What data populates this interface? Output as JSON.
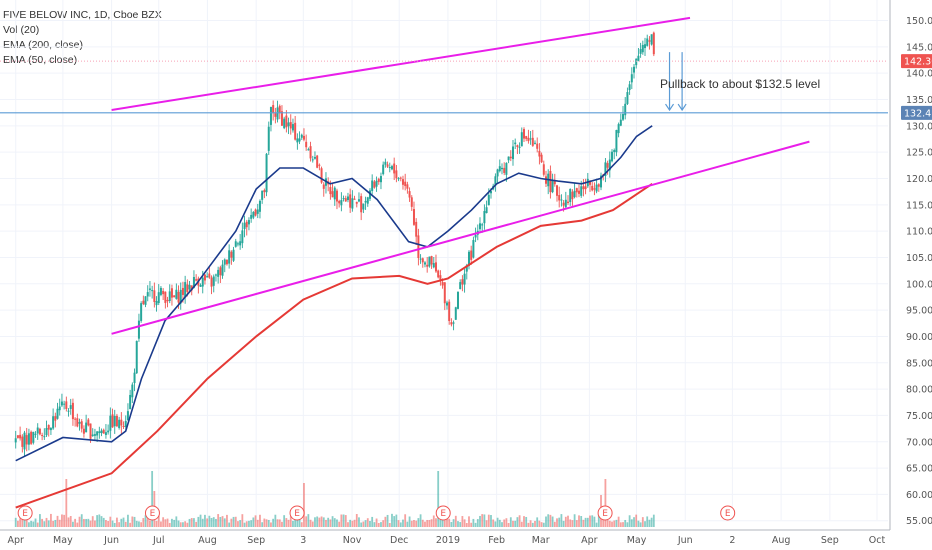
{
  "legend": {
    "symbol": "FIVE BELOW INC, 1D, Cboe BZX",
    "volume": "Vol (20)",
    "ema200": "EMA (200, close)",
    "ema50": "EMA (50, close)"
  },
  "annotation": "Pullback to about $132.5 level",
  "colors": {
    "up": "#26a69a",
    "down": "#ef5350",
    "ema50": "#1a3a8c",
    "ema200": "#e53935",
    "channel": "#e91ee9",
    "hline": "#5b9bd5",
    "price_tag": "#ef5350",
    "level_tag": "#5b83b5"
  },
  "chart_data": {
    "type": "candlestick",
    "title": "FIVE BELOW INC, 1D, Cboe BZX",
    "y_ticks": [
      55,
      60,
      65,
      70,
      75,
      80,
      85,
      90,
      95,
      100,
      105,
      110,
      115,
      120,
      125,
      130,
      135,
      140,
      145,
      150
    ],
    "y_tick_labels": [
      "55.00",
      "60.00",
      "65.00",
      "70.00",
      "75.00",
      "80.00",
      "85.00",
      "90.00",
      "95.00",
      "100.00",
      "105.00",
      "110.00",
      "115.00",
      "120.00",
      "125.00",
      "130.00",
      "135.00",
      "140.00",
      "145.00",
      "150.00"
    ],
    "ylim": [
      54,
      152
    ],
    "x_labels": [
      "Apr",
      "May",
      "Jun",
      "Jul",
      "Aug",
      "Sep",
      "3",
      "Nov",
      "Dec",
      "2019",
      "Feb",
      "Mar",
      "Apr",
      "May",
      "Jun",
      "2",
      "Aug",
      "Sep",
      "Oct"
    ],
    "x_label_days": [
      0,
      30,
      61,
      91,
      122,
      153,
      183,
      214,
      244,
      275,
      306,
      334,
      365,
      395,
      426,
      456,
      487,
      518,
      548
    ],
    "last_price": 142.3,
    "last_price_label": "142.30",
    "level": 132.47,
    "level_label": "132.47",
    "price_path": [
      [
        0,
        70
      ],
      [
        12,
        71
      ],
      [
        20,
        73
      ],
      [
        28,
        76
      ],
      [
        34,
        77
      ],
      [
        40,
        73
      ],
      [
        47,
        72
      ],
      [
        55,
        72
      ],
      [
        62,
        74
      ],
      [
        66,
        73
      ],
      [
        70,
        75
      ],
      [
        74,
        80
      ],
      [
        77,
        88
      ],
      [
        80,
        96
      ],
      [
        86,
        98
      ],
      [
        94,
        98
      ],
      [
        100,
        97
      ],
      [
        108,
        99
      ],
      [
        116,
        101
      ],
      [
        124,
        100
      ],
      [
        132,
        103
      ],
      [
        140,
        108
      ],
      [
        148,
        112
      ],
      [
        154,
        115
      ],
      [
        158,
        117
      ],
      [
        162,
        133
      ],
      [
        168,
        132
      ],
      [
        176,
        129
      ],
      [
        184,
        127
      ],
      [
        190,
        124
      ],
      [
        196,
        119
      ],
      [
        204,
        117
      ],
      [
        212,
        116
      ],
      [
        220,
        115
      ],
      [
        228,
        119
      ],
      [
        236,
        122
      ],
      [
        242,
        121
      ],
      [
        248,
        119
      ],
      [
        252,
        115
      ],
      [
        256,
        106
      ],
      [
        262,
        104
      ],
      [
        266,
        103
      ],
      [
        270,
        100
      ],
      [
        274,
        97
      ],
      [
        277,
        92
      ],
      [
        280,
        96
      ],
      [
        284,
        101
      ],
      [
        290,
        106
      ],
      [
        296,
        112
      ],
      [
        302,
        118
      ],
      [
        308,
        121
      ],
      [
        314,
        124
      ],
      [
        318,
        127
      ],
      [
        324,
        128
      ],
      [
        330,
        126
      ],
      [
        336,
        121
      ],
      [
        342,
        118
      ],
      [
        348,
        116
      ],
      [
        354,
        117
      ],
      [
        360,
        118
      ],
      [
        366,
        119
      ],
      [
        372,
        120
      ],
      [
        378,
        123
      ],
      [
        384,
        131
      ],
      [
        390,
        137
      ],
      [
        394,
        141
      ],
      [
        398,
        145
      ],
      [
        402,
        147
      ],
      [
        405,
        147
      ],
      [
        407,
        142.3
      ]
    ],
    "ema50_path": [
      [
        0,
        66.4
      ],
      [
        30,
        70.8
      ],
      [
        61,
        70
      ],
      [
        70,
        72
      ],
      [
        80,
        82
      ],
      [
        95,
        93
      ],
      [
        115,
        100
      ],
      [
        140,
        110
      ],
      [
        153,
        118
      ],
      [
        168,
        122
      ],
      [
        183,
        122
      ],
      [
        200,
        119
      ],
      [
        214,
        120
      ],
      [
        230,
        116
      ],
      [
        240,
        112
      ],
      [
        250,
        108
      ],
      [
        262,
        107
      ],
      [
        275,
        110
      ],
      [
        290,
        114
      ],
      [
        306,
        119
      ],
      [
        320,
        121
      ],
      [
        334,
        120
      ],
      [
        345,
        119.5
      ],
      [
        360,
        119
      ],
      [
        372,
        120
      ],
      [
        385,
        124
      ],
      [
        395,
        128
      ],
      [
        405,
        130
      ]
    ],
    "ema200_path": [
      [
        0,
        57.5
      ],
      [
        61,
        64
      ],
      [
        90,
        72
      ],
      [
        122,
        82
      ],
      [
        153,
        90
      ],
      [
        183,
        97
      ],
      [
        214,
        101
      ],
      [
        244,
        101.5
      ],
      [
        262,
        100
      ],
      [
        275,
        101
      ],
      [
        306,
        107
      ],
      [
        334,
        111
      ],
      [
        360,
        112
      ],
      [
        380,
        114
      ],
      [
        395,
        117
      ],
      [
        405,
        119
      ]
    ],
    "channel_upper": [
      [
        61,
        133
      ],
      [
        429,
        150.5
      ]
    ],
    "channel_lower": [
      [
        61,
        90.5
      ],
      [
        505,
        127
      ]
    ],
    "pullback_arrows": [
      {
        "day": 416,
        "from": 144,
        "to": 133
      },
      {
        "day": 424,
        "from": 144,
        "to": 133
      }
    ],
    "earnings_days": [
      6,
      87,
      179,
      272,
      375,
      453
    ],
    "earnings_label": "E",
    "volume_ylim": [
      0,
      20
    ],
    "volume_spikes": [
      {
        "day": 32,
        "value": 12
      },
      {
        "day": 87,
        "value": 14
      },
      {
        "day": 88,
        "value": 9
      },
      {
        "day": 183,
        "value": 11
      },
      {
        "day": 269,
        "value": 14
      },
      {
        "day": 372,
        "value": 8
      },
      {
        "day": 375,
        "value": 12
      }
    ]
  }
}
